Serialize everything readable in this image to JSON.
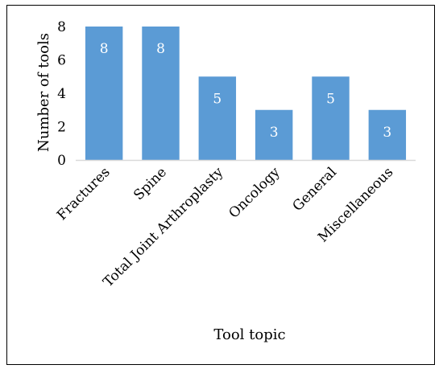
{
  "chart_data": {
    "type": "bar",
    "categories": [
      "Fractures",
      "Spine",
      "Total Joint Arthroplasty",
      "Oncology",
      "General",
      "Miscellaneous"
    ],
    "series": [
      {
        "values": [
          8,
          8,
          5,
          3,
          5,
          3
        ]
      }
    ],
    "title": "",
    "xlabel": "Tool topic",
    "ylabel": "Number of tools",
    "ylim": [
      0,
      8
    ],
    "yticks": [
      0,
      2,
      4,
      6,
      8
    ],
    "grid": false,
    "data_labels": true,
    "legend": "none",
    "colors": {
      "bar": "#5b9bd5",
      "axis": "#d9d9d9",
      "label": "#ffffff"
    }
  }
}
